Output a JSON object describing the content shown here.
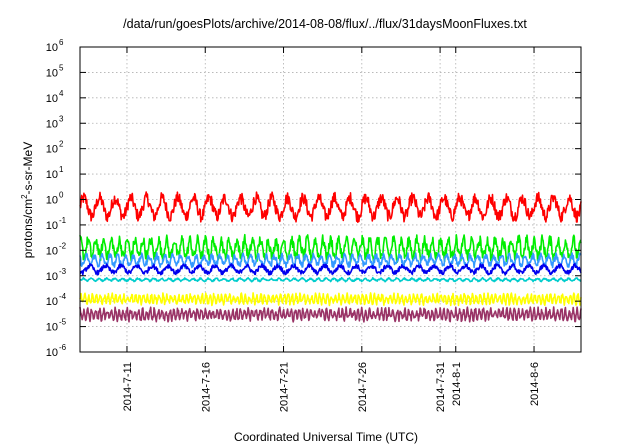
{
  "chart_data": {
    "type": "line",
    "title": "/data/run/goesPlots/archive/2014-08-08/flux/../flux/31daysMoonFluxes.txt",
    "xlabel": "Coordinated Universal Time (UTC)",
    "ylabel_parts": [
      "protons/cm",
      "2",
      "-s-sr-MeV"
    ],
    "y_scale": "log",
    "ylim": [
      1e-06,
      1000000.0
    ],
    "y_ticks": [
      {
        "base": "10",
        "exp": "-6",
        "value": 1e-06
      },
      {
        "base": "10",
        "exp": "-5",
        "value": 1e-05
      },
      {
        "base": "10",
        "exp": "-4",
        "value": 0.0001
      },
      {
        "base": "10",
        "exp": "-3",
        "value": 0.001
      },
      {
        "base": "10",
        "exp": "-2",
        "value": 0.01
      },
      {
        "base": "10",
        "exp": "-1",
        "value": 0.1
      },
      {
        "base": "10",
        "exp": "0",
        "value": 1
      },
      {
        "base": "10",
        "exp": "1",
        "value": 10.0
      },
      {
        "base": "10",
        "exp": "2",
        "value": 100.0
      },
      {
        "base": "10",
        "exp": "3",
        "value": 1000.0
      },
      {
        "base": "10",
        "exp": "4",
        "value": 10000.0
      },
      {
        "base": "10",
        "exp": "5",
        "value": 100000.0
      },
      {
        "base": "10",
        "exp": "6",
        "value": 1000000.0
      }
    ],
    "xlim": [
      "2014-07-08",
      "2014-08-09"
    ],
    "x_ticks": [
      {
        "label": "2014-7-11",
        "day": 3
      },
      {
        "label": "2014-7-16",
        "day": 8
      },
      {
        "label": "2014-7-21",
        "day": 13
      },
      {
        "label": "2014-7-26",
        "day": 18
      },
      {
        "label": "2014-7-31",
        "day": 23
      },
      {
        "label": "2014-8-1",
        "day": 24
      },
      {
        "label": "2014-8-6",
        "day": 29
      }
    ],
    "grid": true,
    "series": [
      {
        "color": "#ff0000",
        "median": 0.5,
        "spread_decades": 0.6,
        "period_days": 1.0
      },
      {
        "color": "#00ee00",
        "median": 0.012,
        "spread_decades": 0.55,
        "period_days": 0.5
      },
      {
        "color": "#3399ff",
        "median": 0.004,
        "spread_decades": 0.3,
        "period_days": 0.5
      },
      {
        "color": "#0000ee",
        "median": 0.0018,
        "spread_decades": 0.22,
        "period_days": 1.0
      },
      {
        "color": "#00cccc",
        "median": 0.0007,
        "spread_decades": 0.08,
        "period_days": 0.5
      },
      {
        "color": "#ffff00",
        "median": 0.00012,
        "spread_decades": 0.25,
        "period_days": 0.25
      },
      {
        "color": "#993366",
        "median": 3e-05,
        "spread_decades": 0.3,
        "period_days": 0.25
      }
    ]
  }
}
